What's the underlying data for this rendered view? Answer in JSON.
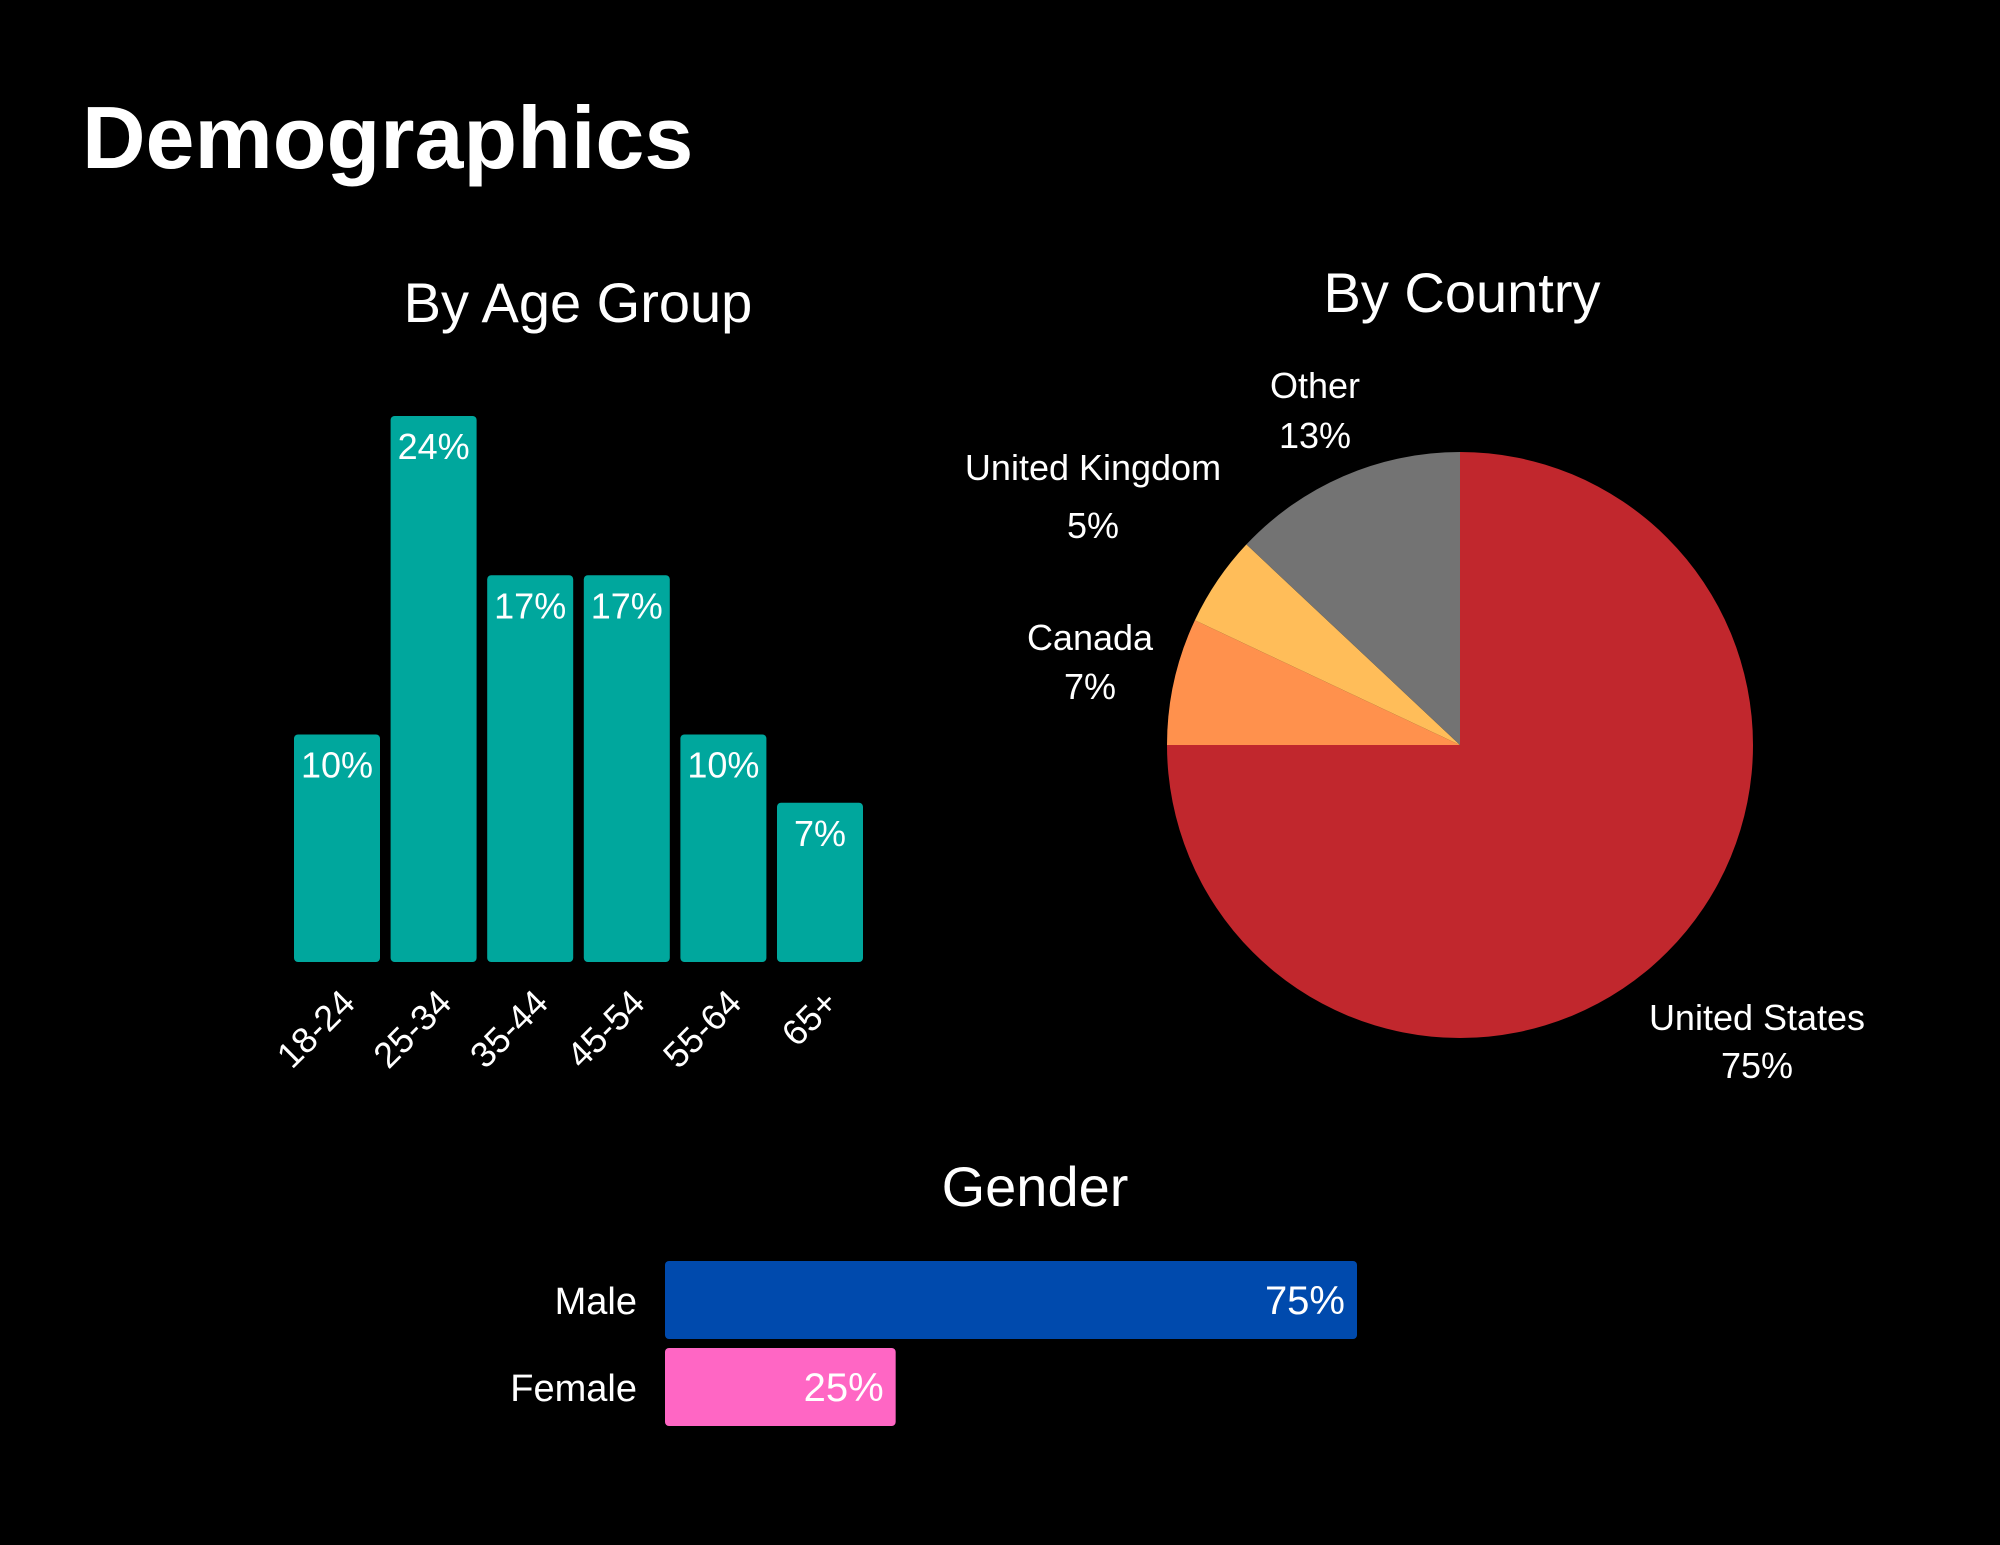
{
  "page": {
    "title": "Demographics"
  },
  "chart_data": [
    {
      "id": "age",
      "type": "bar",
      "title": "By Age Group",
      "categories": [
        "18-24",
        "25-34",
        "35-44",
        "45-54",
        "55-64",
        "65+"
      ],
      "values": [
        10,
        24,
        17,
        17,
        10,
        7
      ],
      "value_labels": [
        "10%",
        "24%",
        "17%",
        "17%",
        "10%",
        "7%"
      ],
      "ylim": [
        0,
        24
      ],
      "color": "#00A79D",
      "grid": false
    },
    {
      "id": "country",
      "type": "pie",
      "title": "By Country",
      "slices": [
        {
          "name": "United States",
          "value": 75,
          "label": "75%",
          "color": "#C1272D"
        },
        {
          "name": "Canada",
          "value": 7,
          "label": "7%",
          "color": "#FF914D"
        },
        {
          "name": "United Kingdom",
          "value": 5,
          "label": "5%",
          "color": "#FFBD59"
        },
        {
          "name": "Other",
          "value": 13,
          "label": "13%",
          "color": "#737373"
        }
      ]
    },
    {
      "id": "gender",
      "type": "bar",
      "orientation": "horizontal",
      "title": "Gender",
      "categories": [
        "Male",
        "Female"
      ],
      "values": [
        75,
        25
      ],
      "value_labels": [
        "75%",
        "25%"
      ],
      "xlim": [
        0,
        75
      ],
      "colors": [
        "#004AAD",
        "#FF66C4"
      ]
    }
  ]
}
